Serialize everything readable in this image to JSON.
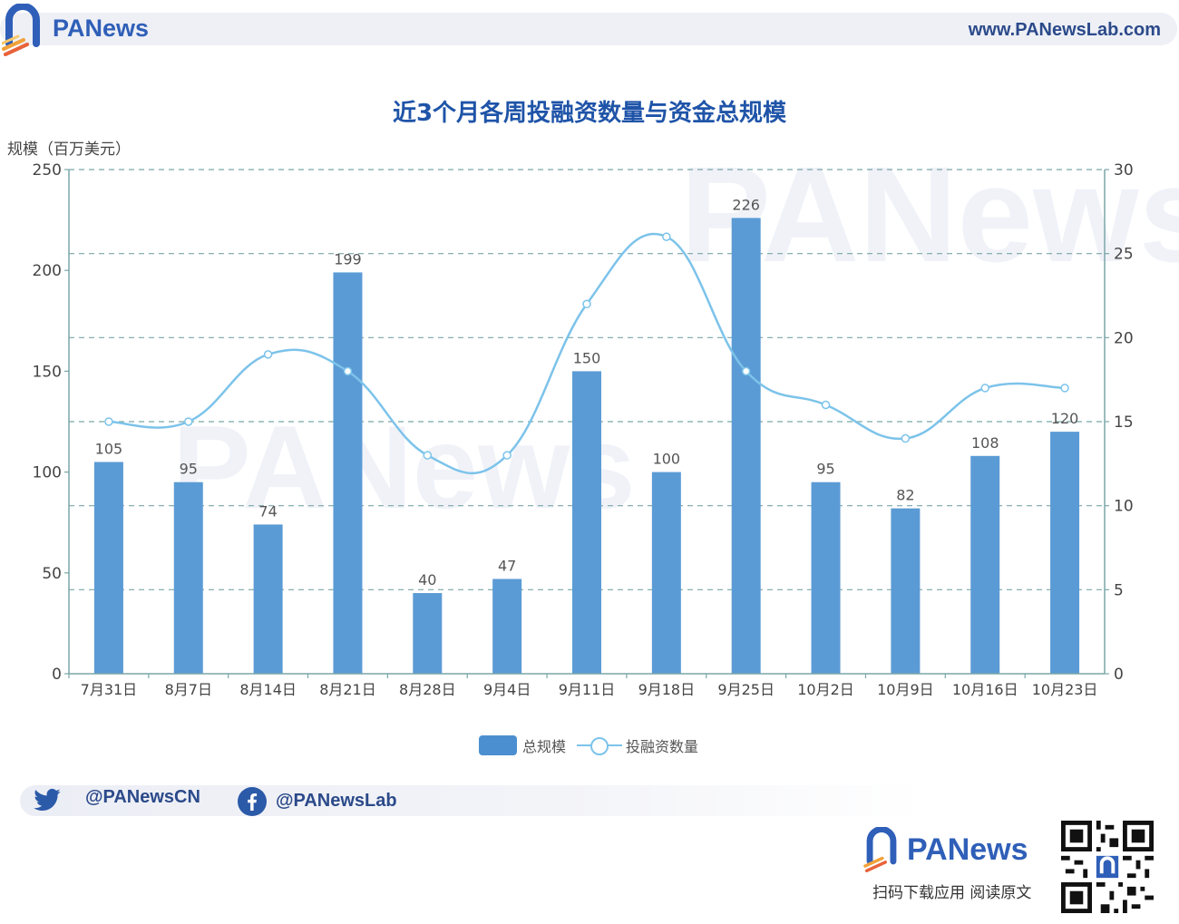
{
  "header": {
    "brand": "PANews",
    "url": "www.PANewsLab.com"
  },
  "watermark": "PANews",
  "colors": {
    "bar": "#5b9bd5",
    "line": "#7cc3ea",
    "title": "#1f54a8",
    "grid": "#7aa6a8"
  },
  "chart_data": {
    "type": "bar",
    "title": "近3个月各周投融资数量与资金总规模",
    "ylabel": "规模（百万美元）",
    "y2label": "",
    "categories": [
      "7月31日",
      "8月7日",
      "8月14日",
      "8月21日",
      "8月28日",
      "9月4日",
      "9月11日",
      "9月18日",
      "9月25日",
      "10月2日",
      "10月9日",
      "10月16日",
      "10月23日"
    ],
    "series": [
      {
        "name": "总规模",
        "type": "bar",
        "axis": "left",
        "values": [
          105,
          95,
          74,
          199,
          40,
          47,
          150,
          100,
          226,
          95,
          82,
          108,
          120
        ]
      },
      {
        "name": "投融资数量",
        "type": "line",
        "axis": "right",
        "smooth": true,
        "values": [
          15,
          15,
          19,
          18,
          13,
          13,
          22,
          26,
          18,
          16,
          14,
          17,
          17
        ]
      }
    ],
    "ylim": [
      0,
      250
    ],
    "yticks": [
      "0",
      "50",
      "100",
      "150",
      "200",
      "250"
    ],
    "y2lim": [
      0,
      30
    ],
    "y2ticks": [
      "0",
      "5",
      "10",
      "15",
      "20",
      "25",
      "30"
    ],
    "data_labels": [
      "105",
      "95",
      "74",
      "199",
      "40",
      "47",
      "150",
      "100",
      "226",
      "95",
      "82",
      "108",
      "120"
    ],
    "grid": true,
    "legend_position": "bottom-center"
  },
  "social": {
    "twitter_icon": "twitter-bird-icon",
    "twitter": "@PANewsCN",
    "facebook_icon": "facebook-icon",
    "facebook": "@PANewsLab"
  },
  "footer": {
    "brand": "PANews",
    "caption": "扫码下载应用  阅读原文"
  }
}
